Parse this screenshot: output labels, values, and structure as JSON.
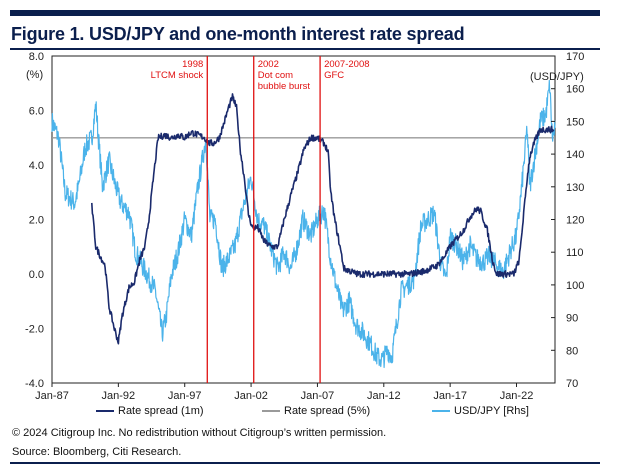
{
  "header": {
    "title": "Figure 1. USD/JPY and one-month interest rate spread"
  },
  "footer": {
    "copyright": "© 2024 Citigroup Inc. No redistribution without Citigroup’s written permission.",
    "source": "Source: Bloomberg, Citi Research."
  },
  "colors": {
    "navy": "#1a2a6c",
    "gray": "#9a9a9a",
    "light_blue": "#4bb3ea",
    "red": "#e01010",
    "brand": "#0b1f4d"
  },
  "chart_data": {
    "type": "line",
    "title": "Figure 1. USD/JPY and one-month interest rate spread",
    "xlabel": "",
    "ylabel_left": "(%)",
    "ylabel_right": "(USD/JPY)",
    "xlim": [
      1987.0,
      2024.9
    ],
    "ylim_left": [
      -4.0,
      8.0
    ],
    "ylim_right": [
      70,
      170
    ],
    "y_ticks_left": [
      "8.0",
      "6.0",
      "4.0",
      "2.0",
      "0.0",
      "-2.0",
      "-4.0"
    ],
    "y_ticks_right": [
      "170",
      "160",
      "150",
      "140",
      "130",
      "120",
      "110",
      "100",
      "90",
      "80",
      "70"
    ],
    "x_ticks": [
      {
        "label": "Jan-87",
        "x": 1987.0
      },
      {
        "label": "Jan-92",
        "x": 1992.0
      },
      {
        "label": "Jan-97",
        "x": 1997.0
      },
      {
        "label": "Jan-02",
        "x": 2002.0
      },
      {
        "label": "Jan-07",
        "x": 2007.0
      },
      {
        "label": "Jan-12",
        "x": 2012.0
      },
      {
        "label": "Jan-17",
        "x": 2017.0
      },
      {
        "label": "Jan-22",
        "x": 2022.0
      }
    ],
    "grid": false,
    "legend_position": "bottom",
    "annotations": [
      {
        "x": 1998.7,
        "lines": [
          "1998",
          "LTCM shock"
        ]
      },
      {
        "x": 2002.2,
        "lines": [
          "2002",
          "Dot com",
          "bubble burst"
        ]
      },
      {
        "x": 2007.2,
        "lines": [
          "2007-2008",
          "GFC"
        ]
      }
    ],
    "series": [
      {
        "name": "Rate spread (1m)",
        "axis": "left",
        "points": [
          [
            1990.0,
            2.5
          ],
          [
            1990.3,
            1.0
          ],
          [
            1990.7,
            0.6
          ],
          [
            1991.0,
            0.3
          ],
          [
            1991.3,
            -1.2
          ],
          [
            1991.7,
            -2.0
          ],
          [
            1992.0,
            -2.5
          ],
          [
            1992.3,
            -1.5
          ],
          [
            1992.8,
            -0.5
          ],
          [
            1993.2,
            -0.3
          ],
          [
            1993.6,
            0.5
          ],
          [
            1994.0,
            1.0
          ],
          [
            1994.3,
            2.0
          ],
          [
            1994.7,
            3.8
          ],
          [
            1995.0,
            5.0
          ],
          [
            1995.5,
            5.1
          ],
          [
            1996.0,
            5.0
          ],
          [
            1996.5,
            5.1
          ],
          [
            1997.0,
            5.0
          ],
          [
            1997.5,
            5.2
          ],
          [
            1998.0,
            5.1
          ],
          [
            1998.5,
            5.0
          ],
          [
            1998.8,
            4.8
          ],
          [
            1999.2,
            4.8
          ],
          [
            1999.6,
            5.0
          ],
          [
            2000.0,
            5.6
          ],
          [
            2000.3,
            6.1
          ],
          [
            2000.6,
            6.5
          ],
          [
            2000.9,
            6.1
          ],
          [
            2001.2,
            4.5
          ],
          [
            2001.5,
            3.5
          ],
          [
            2001.8,
            2.2
          ],
          [
            2002.1,
            1.7
          ],
          [
            2002.5,
            1.7
          ],
          [
            2003.0,
            1.2
          ],
          [
            2003.5,
            1.0
          ],
          [
            2004.0,
            1.0
          ],
          [
            2004.5,
            2.0
          ],
          [
            2005.0,
            2.9
          ],
          [
            2005.5,
            3.7
          ],
          [
            2006.0,
            4.6
          ],
          [
            2006.5,
            5.0
          ],
          [
            2007.0,
            5.0
          ],
          [
            2007.5,
            4.8
          ],
          [
            2007.8,
            4.5
          ],
          [
            2008.0,
            3.0
          ],
          [
            2008.3,
            2.0
          ],
          [
            2008.7,
            1.0
          ],
          [
            2009.0,
            0.2
          ],
          [
            2009.5,
            0.1
          ],
          [
            2010.0,
            0.0
          ],
          [
            2011.0,
            0.0
          ],
          [
            2012.0,
            0.0
          ],
          [
            2013.0,
            0.0
          ],
          [
            2014.0,
            0.0
          ],
          [
            2015.0,
            0.1
          ],
          [
            2015.5,
            0.2
          ],
          [
            2016.0,
            0.3
          ],
          [
            2016.5,
            0.6
          ],
          [
            2017.0,
            1.0
          ],
          [
            2017.5,
            1.3
          ],
          [
            2018.0,
            1.6
          ],
          [
            2018.5,
            2.1
          ],
          [
            2019.0,
            2.4
          ],
          [
            2019.3,
            2.3
          ],
          [
            2019.8,
            1.6
          ],
          [
            2020.2,
            0.5
          ],
          [
            2020.5,
            0.0
          ],
          [
            2021.0,
            0.0
          ],
          [
            2021.8,
            0.0
          ],
          [
            2022.2,
            0.5
          ],
          [
            2022.5,
            2.0
          ],
          [
            2022.8,
            3.5
          ],
          [
            2023.0,
            4.3
          ],
          [
            2023.4,
            4.9
          ],
          [
            2023.8,
            5.3
          ],
          [
            2024.2,
            5.3
          ],
          [
            2024.8,
            5.3
          ]
        ]
      },
      {
        "name": "Rate spread (5%)",
        "axis": "left",
        "points": [
          [
            1987.0,
            5.0
          ],
          [
            2024.9,
            5.0
          ]
        ]
      },
      {
        "name": "USD/JPY [Rhs]",
        "axis": "right",
        "points": [
          [
            1987.0,
            150
          ],
          [
            1987.5,
            145
          ],
          [
            1988.0,
            128
          ],
          [
            1988.7,
            125
          ],
          [
            1989.0,
            130
          ],
          [
            1989.5,
            142
          ],
          [
            1990.0,
            145
          ],
          [
            1990.3,
            155
          ],
          [
            1990.8,
            130
          ],
          [
            1991.3,
            138
          ],
          [
            1991.8,
            130
          ],
          [
            1992.2,
            125
          ],
          [
            1992.8,
            122
          ],
          [
            1993.3,
            110
          ],
          [
            1993.8,
            106
          ],
          [
            1994.3,
            102
          ],
          [
            1994.8,
            98
          ],
          [
            1995.3,
            85
          ],
          [
            1995.6,
            90
          ],
          [
            1996.0,
            103
          ],
          [
            1996.5,
            110
          ],
          [
            1997.0,
            120
          ],
          [
            1997.5,
            115
          ],
          [
            1998.0,
            130
          ],
          [
            1998.6,
            145
          ],
          [
            1998.9,
            120
          ],
          [
            1999.3,
            120
          ],
          [
            1999.8,
            105
          ],
          [
            2000.3,
            108
          ],
          [
            2000.8,
            112
          ],
          [
            2001.3,
            122
          ],
          [
            2002.0,
            133
          ],
          [
            2002.5,
            120
          ],
          [
            2003.0,
            118
          ],
          [
            2003.6,
            110
          ],
          [
            2004.0,
            105
          ],
          [
            2004.5,
            110
          ],
          [
            2005.0,
            105
          ],
          [
            2005.5,
            112
          ],
          [
            2005.9,
            120
          ],
          [
            2006.5,
            115
          ],
          [
            2007.0,
            120
          ],
          [
            2007.5,
            123
          ],
          [
            2008.0,
            108
          ],
          [
            2008.4,
            100
          ],
          [
            2008.9,
            92
          ],
          [
            2009.4,
            95
          ],
          [
            2009.9,
            88
          ],
          [
            2010.5,
            85
          ],
          [
            2011.0,
            82
          ],
          [
            2011.5,
            78
          ],
          [
            2011.9,
            77
          ],
          [
            2012.3,
            80
          ],
          [
            2012.6,
            78
          ],
          [
            2012.9,
            86
          ],
          [
            2013.3,
            98
          ],
          [
            2013.8,
            100
          ],
          [
            2014.3,
            102
          ],
          [
            2014.8,
            118
          ],
          [
            2015.3,
            120
          ],
          [
            2015.8,
            122
          ],
          [
            2016.3,
            106
          ],
          [
            2016.7,
            102
          ],
          [
            2017.0,
            115
          ],
          [
            2017.5,
            112
          ],
          [
            2018.0,
            107
          ],
          [
            2018.5,
            112
          ],
          [
            2019.0,
            108
          ],
          [
            2019.5,
            107
          ],
          [
            2020.0,
            109
          ],
          [
            2020.5,
            106
          ],
          [
            2021.0,
            104
          ],
          [
            2021.5,
            110
          ],
          [
            2022.0,
            115
          ],
          [
            2022.4,
            130
          ],
          [
            2022.8,
            148
          ],
          [
            2023.0,
            130
          ],
          [
            2023.4,
            140
          ],
          [
            2023.8,
            150
          ],
          [
            2024.2,
            152
          ],
          [
            2024.5,
            161
          ],
          [
            2024.7,
            145
          ],
          [
            2024.9,
            148
          ]
        ]
      }
    ]
  }
}
